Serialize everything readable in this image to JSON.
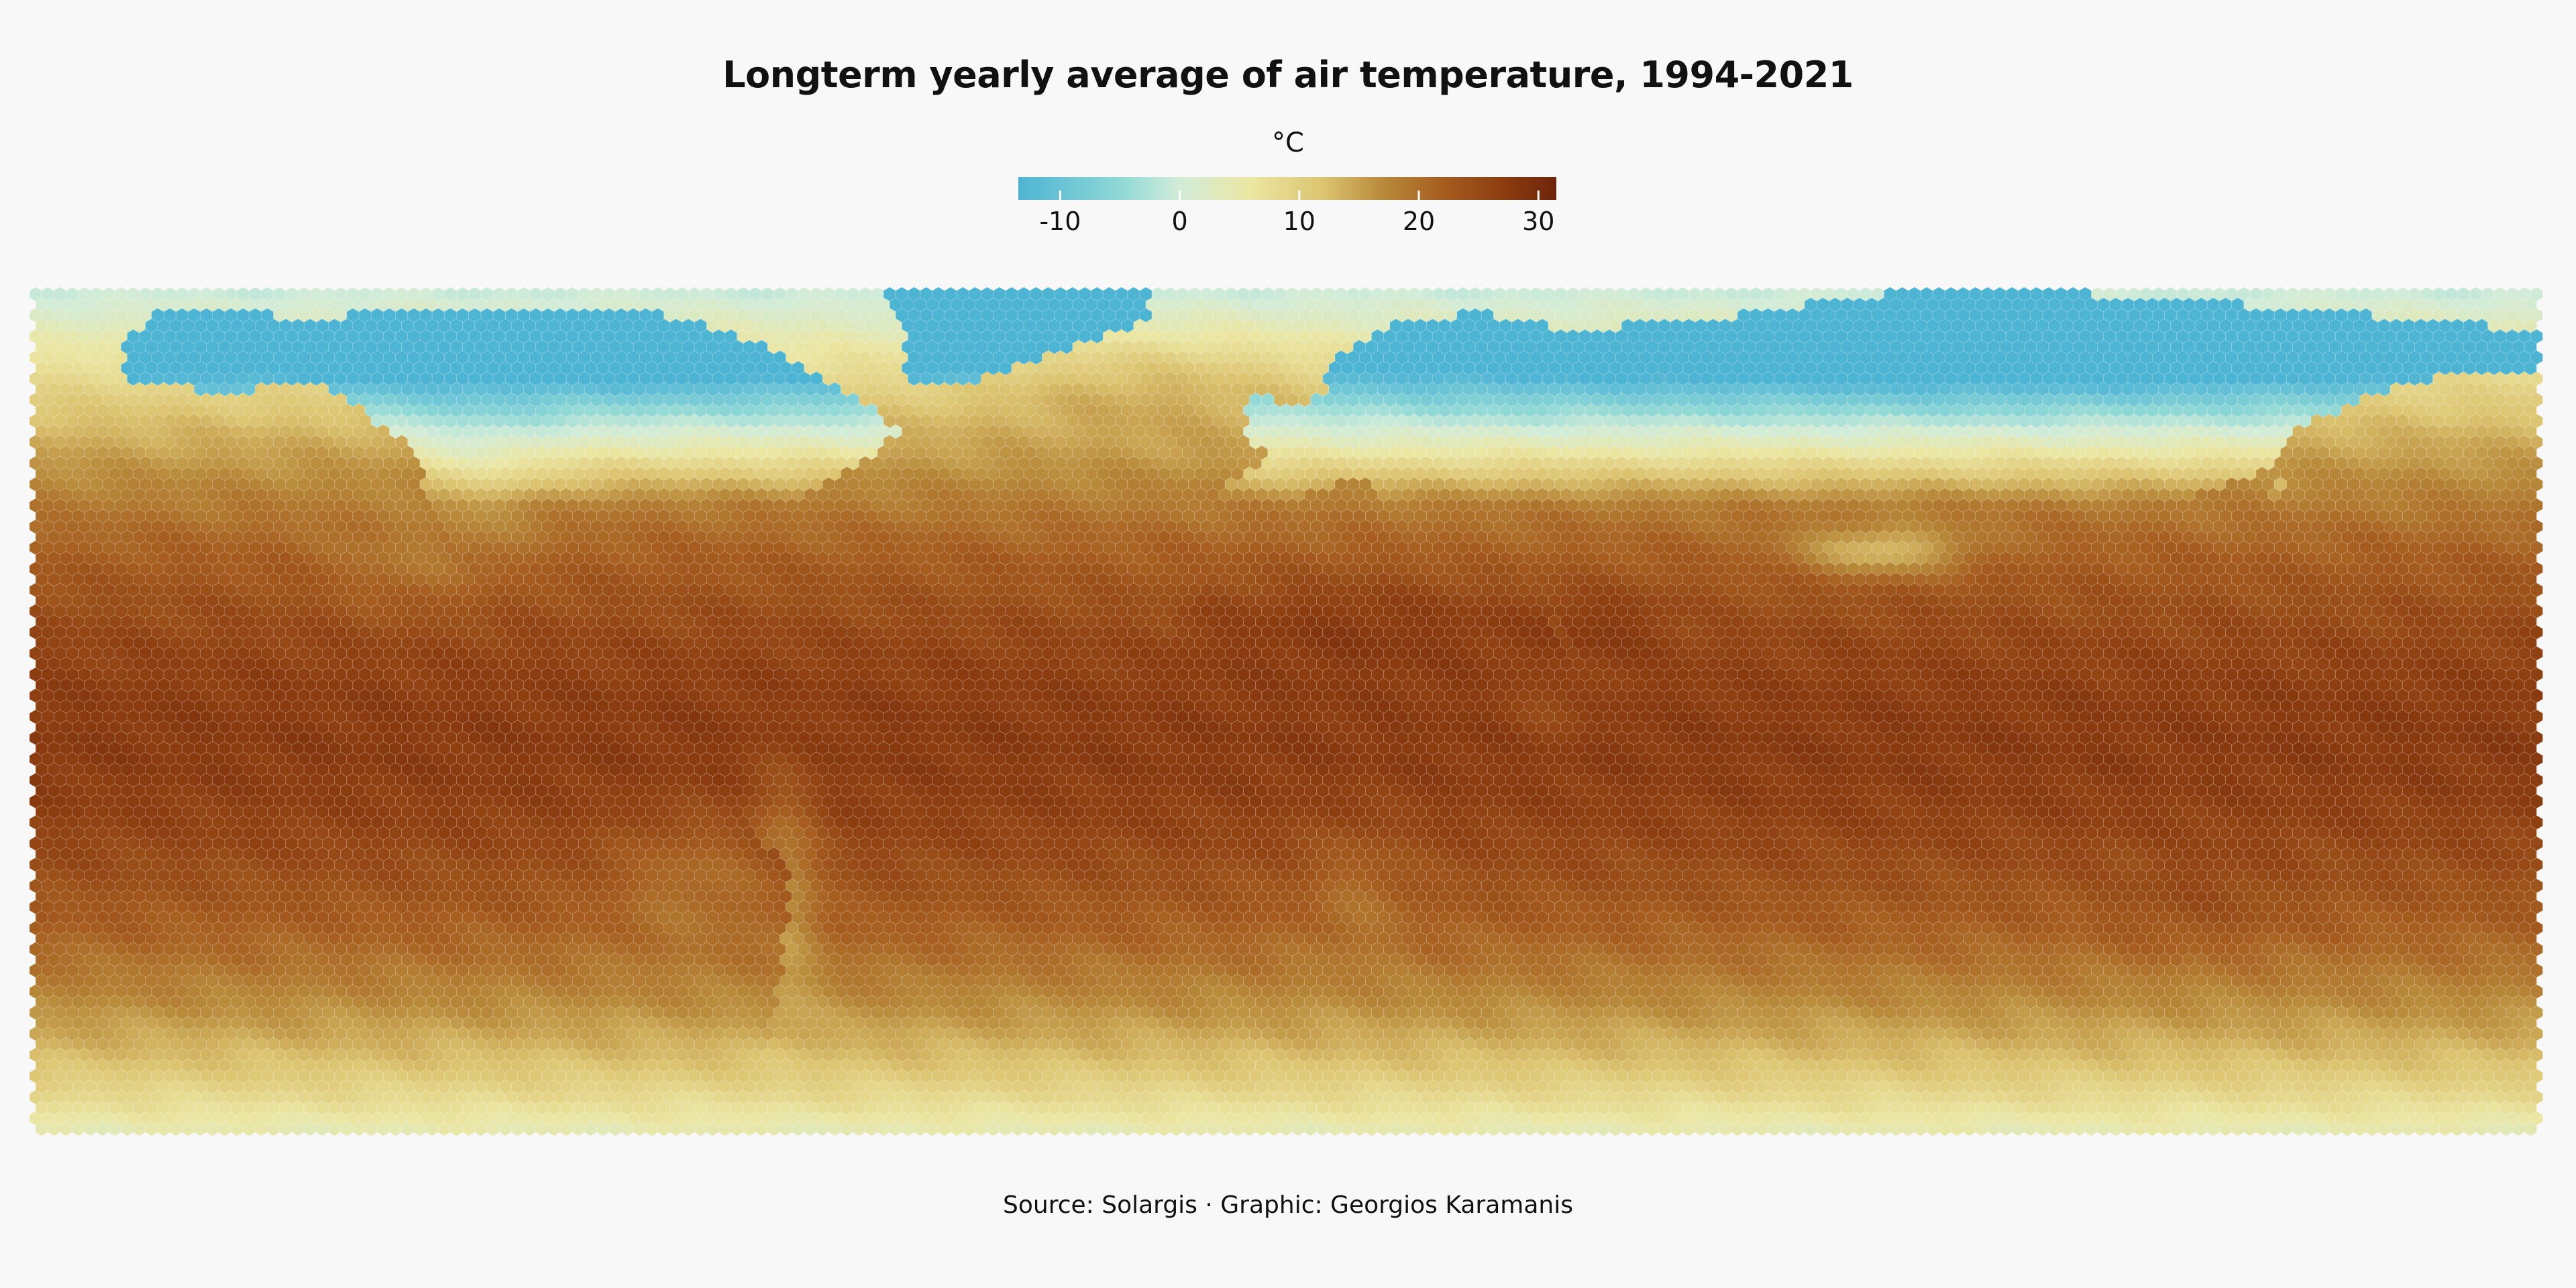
{
  "title": "Longterm yearly average of air temperature, 1994-2021",
  "legend": {
    "unit": "°C",
    "ticks": [
      {
        "value": -10,
        "label": "-10"
      },
      {
        "value": 0,
        "label": "0"
      },
      {
        "value": 10,
        "label": "10"
      },
      {
        "value": 20,
        "label": "20"
      },
      {
        "value": 30,
        "label": "30"
      }
    ],
    "range": [
      -13.5,
      31.5
    ],
    "stops": [
      {
        "value": -13.5,
        "color": "#4eb4d4"
      },
      {
        "value": -5,
        "color": "#8fd8d6"
      },
      {
        "value": 0,
        "color": "#d2ecd8"
      },
      {
        "value": 6,
        "color": "#ebe6a2"
      },
      {
        "value": 12,
        "color": "#dcc470"
      },
      {
        "value": 17,
        "color": "#b88a3a"
      },
      {
        "value": 22,
        "color": "#a65d1f"
      },
      {
        "value": 27,
        "color": "#8c3d10"
      },
      {
        "value": 31.5,
        "color": "#6e250a"
      }
    ]
  },
  "map": {
    "type": "hexbin",
    "projection": "equirectangular",
    "lat_range": [
      -60,
      75
    ],
    "lon_range": [
      -180,
      180
    ]
  },
  "source": "Source: Solargis · Graphic: Georgios Karamanis"
}
